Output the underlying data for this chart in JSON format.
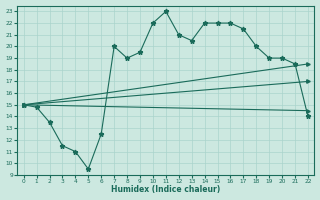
{
  "xlabel": "Humidex (Indice chaleur)",
  "bg_color": "#cce8e0",
  "line_color": "#1a6b5a",
  "grid_color": "#aad4cc",
  "xlim": [
    -0.5,
    22.5
  ],
  "ylim": [
    9,
    23.5
  ],
  "xticks": [
    0,
    1,
    2,
    3,
    4,
    5,
    6,
    7,
    8,
    9,
    10,
    11,
    12,
    13,
    14,
    15,
    16,
    17,
    18,
    19,
    20,
    21,
    22
  ],
  "yticks": [
    9,
    10,
    11,
    12,
    13,
    14,
    15,
    16,
    17,
    18,
    19,
    20,
    21,
    22,
    23
  ],
  "line1_x": [
    0,
    1,
    2,
    3,
    4,
    5,
    6,
    7,
    8,
    9,
    10,
    11,
    12,
    13,
    14,
    15,
    16,
    17,
    18,
    19,
    20,
    21,
    22
  ],
  "line1_y": [
    15,
    14.8,
    13.5,
    11.5,
    11,
    9.5,
    12.5,
    20,
    19,
    19.5,
    22,
    23,
    21,
    20.5,
    22,
    22,
    22,
    21.5,
    20,
    19,
    19,
    18.5,
    14
  ],
  "line2_x": [
    0,
    22
  ],
  "line2_y": [
    15,
    18.5
  ],
  "line3_x": [
    0,
    22
  ],
  "line3_y": [
    15,
    17.0
  ],
  "line4_x": [
    0,
    22
  ],
  "line4_y": [
    15,
    14.5
  ],
  "marker1": {
    "x": [
      0,
      1,
      2,
      3,
      4,
      5,
      6,
      7,
      8,
      9,
      10,
      11,
      12,
      13,
      14,
      15,
      16,
      17,
      18,
      19,
      20,
      21,
      22
    ],
    "y": [
      15,
      14.8,
      13.5,
      11.5,
      11,
      9.5,
      12.5,
      20,
      19,
      19.5,
      22,
      23,
      21,
      20.5,
      22,
      22,
      22,
      21.5,
      20,
      19,
      19,
      18.5,
      14
    ]
  },
  "figsize": [
    3.2,
    2.0
  ],
  "dpi": 100
}
